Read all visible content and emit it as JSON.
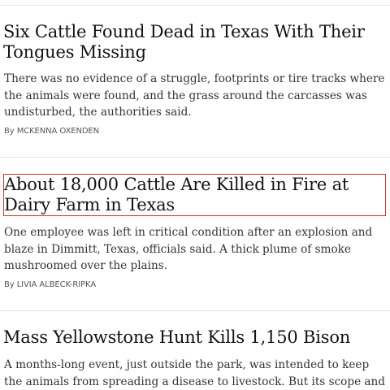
{
  "articles": [
    {
      "headline": "Six Cattle Found Dead in Texas With Their Tongues Missing",
      "summary": "There was no evidence of a struggle, footprints or tire tracks where the animals were found, and the grass around the carcasses was undisturbed, the authorities said.",
      "byline_prefix": "By",
      "author": "MCKENNA OXENDEN"
    },
    {
      "headline": "About 18,000 Cattle Are Killed in Fire at Dairy Farm in Texas",
      "summary": "One employee was left in critical condition after an explosion and blaze in Dimmitt, Texas, officials said. A thick plume of smoke mushroomed over the plains.",
      "byline_prefix": "By",
      "author": "LIVIA ALBECK-RIPKA"
    },
    {
      "headline": "Mass Yellowstone Hunt Kills 1,150 Bison",
      "summary": "A months-long event, just outside the park, was intended to keep the animals from spreading a disease to livestock. But its scope and other"
    }
  ],
  "colors": {
    "highlight_border": "#c0392b",
    "divider": "#e2e2e2"
  }
}
